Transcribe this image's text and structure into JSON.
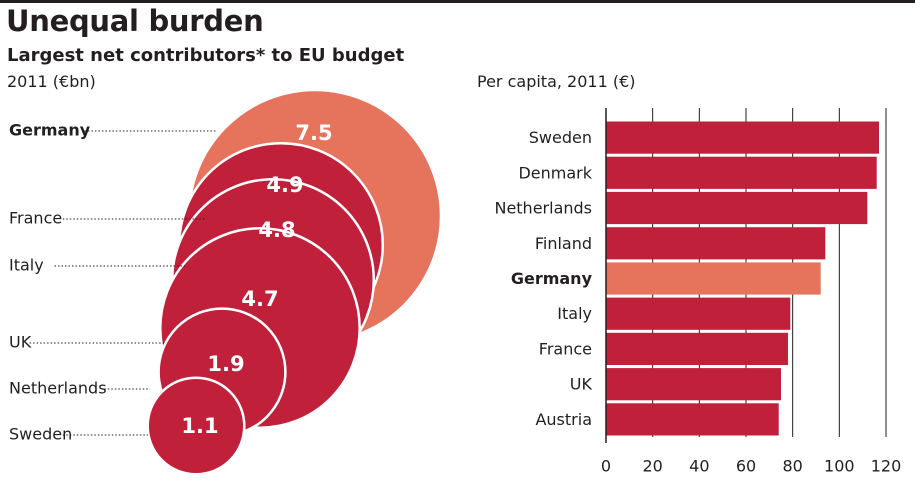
{
  "header": {
    "title": "Unequal burden",
    "subtitle": "Largest net contributors* to EU budget"
  },
  "chart_data": [
    {
      "type": "bubble",
      "unit_label": "2011 (€bn)",
      "categories": [
        "Germany",
        "France",
        "Italy",
        "UK",
        "Netherlands",
        "Sweden"
      ],
      "values": [
        7.5,
        4.9,
        4.8,
        4.7,
        1.9,
        1.1
      ],
      "value_labels": [
        "7.5",
        "4.9",
        "4.8",
        "4.7",
        "1.9",
        "1.1"
      ],
      "highlight": "Germany"
    },
    {
      "type": "bar",
      "orientation": "horizontal",
      "unit_label": "Per capita, 2011 (€)",
      "categories": [
        "Sweden",
        "Denmark",
        "Netherlands",
        "Finland",
        "Germany",
        "Italy",
        "France",
        "UK",
        "Austria"
      ],
      "values": [
        117,
        116,
        112,
        94,
        92,
        79,
        78,
        75,
        74
      ],
      "highlight": "Germany",
      "xlim": [
        0,
        120
      ],
      "xticks": [
        0,
        20,
        40,
        60,
        80,
        100,
        120
      ]
    }
  ],
  "colors": {
    "main": "#c1203b",
    "highlight": "#e6735c",
    "text": "#231f20"
  }
}
